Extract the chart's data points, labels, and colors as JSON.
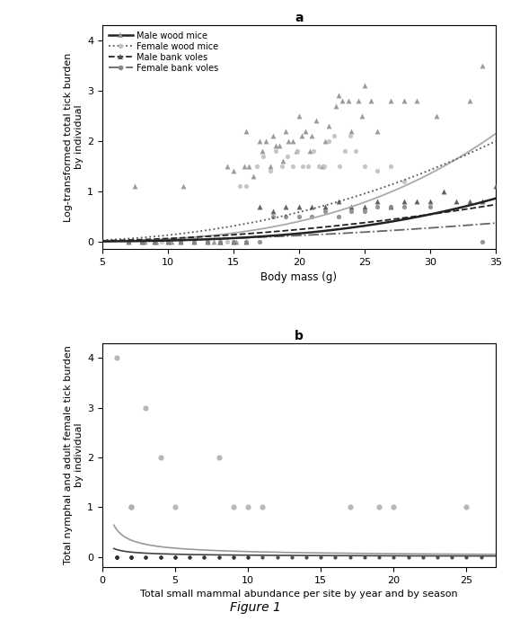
{
  "panel_a": {
    "title": "a",
    "xlabel": "Body mass (g)",
    "ylabel": "Log-transformed total tick burden\nby individual",
    "xlim": [
      5,
      35
    ],
    "ylim": [
      -0.15,
      4.3
    ],
    "xticks": [
      5,
      10,
      15,
      20,
      25,
      30,
      35
    ],
    "yticks": [
      0,
      1,
      2,
      3,
      4
    ],
    "scatter_male_wm": {
      "x": [
        7.5,
        8.2,
        9.1,
        10.3,
        11.2,
        13.5,
        14.0,
        14.5,
        15.0,
        15.2,
        15.8,
        16.0,
        16.2,
        16.5,
        17.0,
        17.2,
        17.5,
        17.8,
        18.0,
        18.2,
        18.5,
        18.8,
        19.0,
        19.2,
        19.5,
        19.8,
        20.0,
        20.2,
        20.5,
        20.8,
        21.0,
        21.3,
        21.8,
        22.0,
        22.3,
        22.8,
        23.0,
        23.3,
        23.8,
        24.0,
        24.5,
        24.8,
        25.0,
        25.5,
        26.0,
        27.0,
        28.0,
        29.0,
        30.5,
        33.0,
        34.0
      ],
      "y": [
        1.1,
        0.0,
        0.0,
        0.0,
        1.1,
        0.0,
        0.0,
        1.5,
        1.4,
        0.0,
        1.5,
        2.2,
        1.5,
        1.3,
        2.0,
        1.8,
        2.0,
        1.5,
        2.1,
        1.9,
        1.9,
        1.6,
        2.2,
        2.0,
        2.0,
        1.8,
        2.5,
        2.1,
        2.2,
        1.8,
        2.1,
        2.4,
        1.5,
        2.0,
        2.3,
        2.7,
        2.9,
        2.8,
        2.8,
        2.2,
        2.8,
        2.5,
        3.1,
        2.8,
        2.2,
        2.8,
        2.8,
        2.8,
        2.5,
        2.8,
        3.5
      ],
      "color": "#909090",
      "marker": "^",
      "size": 18
    },
    "scatter_female_wm": {
      "x": [
        8.0,
        9.5,
        11.0,
        13.0,
        14.5,
        15.5,
        16.0,
        16.8,
        17.3,
        17.8,
        18.2,
        18.7,
        19.1,
        19.5,
        19.9,
        20.3,
        20.7,
        21.1,
        21.5,
        21.9,
        22.3,
        22.7,
        23.1,
        23.5,
        23.9,
        24.3,
        25.0,
        26.0,
        27.0,
        28.0
      ],
      "y": [
        0.0,
        0.0,
        0.0,
        0.0,
        0.0,
        1.1,
        1.1,
        1.5,
        1.7,
        1.4,
        1.8,
        1.5,
        1.7,
        1.5,
        1.8,
        1.5,
        1.5,
        1.8,
        1.5,
        1.5,
        2.0,
        2.1,
        1.5,
        1.8,
        2.1,
        1.8,
        1.5,
        1.4,
        1.5,
        1.2
      ],
      "color": "#c0c0c0",
      "marker": "o",
      "size": 14
    },
    "scatter_male_bv": {
      "x": [
        7.0,
        8.0,
        9.0,
        10.0,
        11.0,
        12.0,
        13.0,
        14.0,
        15.0,
        16.0,
        17.0,
        18.0,
        19.0,
        20.0,
        21.0,
        22.0,
        23.0,
        24.0,
        25.0,
        26.0,
        27.0,
        28.0,
        29.0,
        30.0,
        31.0,
        32.0,
        33.0,
        34.0,
        35.0
      ],
      "y": [
        0.0,
        0.0,
        0.0,
        0.0,
        0.0,
        0.0,
        0.0,
        0.0,
        0.0,
        0.0,
        0.7,
        0.6,
        0.7,
        0.7,
        0.7,
        0.7,
        0.8,
        0.7,
        0.7,
        0.8,
        0.7,
        0.8,
        0.8,
        0.8,
        1.0,
        0.8,
        0.8,
        0.8,
        1.1
      ],
      "color": "#505050",
      "marker": "^",
      "size": 18
    },
    "scatter_female_bv": {
      "x": [
        7.0,
        8.0,
        9.0,
        10.0,
        11.0,
        12.0,
        13.0,
        14.0,
        15.0,
        16.0,
        17.0,
        18.0,
        19.0,
        20.0,
        21.0,
        22.0,
        23.0,
        24.0,
        25.0,
        26.0,
        27.0,
        28.0,
        30.0,
        34.0
      ],
      "y": [
        0.0,
        0.0,
        0.0,
        0.0,
        0.0,
        0.0,
        0.0,
        0.0,
        0.0,
        0.0,
        0.0,
        0.5,
        0.5,
        0.5,
        0.5,
        0.6,
        0.5,
        0.6,
        0.6,
        0.7,
        0.7,
        0.7,
        0.7,
        0.0
      ],
      "color": "#888888",
      "marker": "o",
      "size": 14
    },
    "curves": {
      "wm_male_upper": {
        "a": 5e-05,
        "b": 3.0,
        "color": "#aaaaaa",
        "lw": 1.3,
        "ls": "solid"
      },
      "wm_male_fit": {
        "a": 2e-05,
        "b": 3.0,
        "color": "#222222",
        "lw": 1.8,
        "ls": "solid"
      },
      "wm_female": {
        "a": 0.0008,
        "b": 2.2,
        "color": "#555555",
        "lw": 1.3,
        "ls": "dotted"
      },
      "bv_male": {
        "a": 0.0006,
        "b": 2.0,
        "color": "#222222",
        "lw": 1.3,
        "ls": "dashed"
      },
      "bv_female": {
        "a": 0.0003,
        "b": 2.0,
        "color": "#666666",
        "lw": 1.3,
        "ls": "dashdot"
      }
    },
    "legend_entries": [
      {
        "label": "Male wood mice",
        "color": "#222222",
        "lw": 1.8,
        "ls": "solid",
        "mcolor": "#909090",
        "marker": "^"
      },
      {
        "label": "Female wood mice",
        "color": "#555555",
        "lw": 1.3,
        "ls": "dotted",
        "mcolor": "#c0c0c0",
        "marker": "o"
      },
      {
        "label": "Male bank voles",
        "color": "#222222",
        "lw": 1.3,
        "ls": "dashed",
        "mcolor": "#505050",
        "marker": "^"
      },
      {
        "label": "Female bank voles",
        "color": "#666666",
        "lw": 1.3,
        "ls": "dashdot",
        "mcolor": "#888888",
        "marker": "o"
      }
    ]
  },
  "panel_b": {
    "title": "b",
    "xlabel": "Total small mammal abundance per site by year and by season",
    "ylabel": "Total nymphal and adult female tick burden\nby individual",
    "xlim": [
      0,
      27
    ],
    "ylim": [
      -0.2,
      4.3
    ],
    "xticks": [
      0,
      5,
      10,
      15,
      20,
      25
    ],
    "yticks": [
      0,
      1,
      2,
      3,
      4
    ],
    "scatter_sparse": {
      "x": [
        1,
        2,
        2,
        3,
        4,
        5,
        8,
        9,
        10,
        11,
        17,
        19,
        20,
        25
      ],
      "y": [
        4.0,
        1.0,
        1.0,
        3.0,
        2.0,
        1.0,
        2.0,
        1.0,
        1.0,
        1.0,
        1.0,
        1.0,
        1.0,
        1.0
      ],
      "color": "#b0b0b0",
      "marker": "o",
      "size": 20
    },
    "scatter_zero": {
      "x": [
        1,
        1,
        1,
        1,
        1,
        2,
        2,
        2,
        2,
        2,
        3,
        3,
        3,
        4,
        4,
        4,
        5,
        5,
        5,
        6,
        6,
        7,
        7,
        8,
        8,
        9,
        9,
        10,
        10,
        11,
        12,
        13,
        14,
        15,
        16,
        17,
        18,
        19,
        20,
        21,
        22,
        23,
        24,
        25,
        26
      ],
      "y": [
        0,
        0,
        0,
        0,
        0,
        0,
        0,
        0,
        0,
        0,
        0,
        0,
        0,
        0,
        0,
        0,
        0,
        0,
        0,
        0,
        0,
        0,
        0,
        0,
        0,
        0,
        0,
        0,
        0,
        0,
        0,
        0,
        0,
        0,
        0,
        0,
        0,
        0,
        0,
        0,
        0,
        0,
        0,
        0,
        0
      ],
      "color": "#303030",
      "marker": "o",
      "size": 9
    },
    "curve_upper": {
      "a": 0.55,
      "b": -0.7,
      "color": "#999999",
      "lw": 1.2
    },
    "curve_lower": {
      "a": 0.15,
      "b": -0.6,
      "color": "#444444",
      "lw": 1.2
    }
  },
  "figure_label": "Figure 1"
}
